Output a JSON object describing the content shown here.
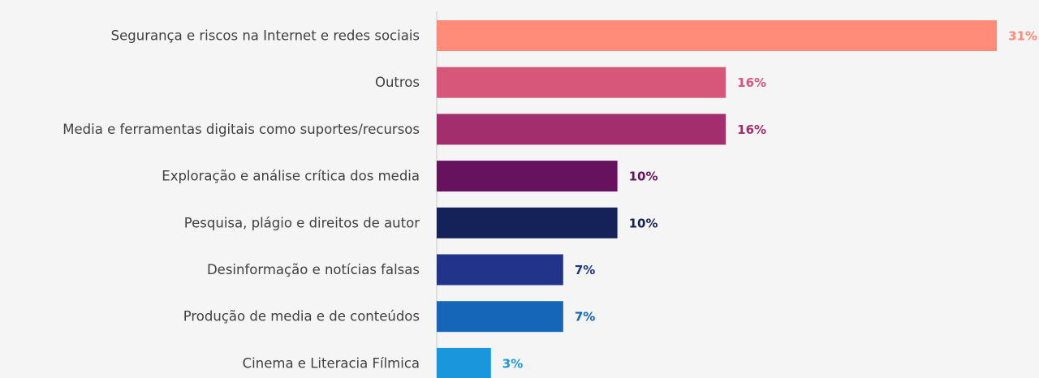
{
  "chart_data": {
    "type": "barh",
    "categories": [
      "Segurança e riscos na Internet e redes sociais",
      "Outros",
      "Media e ferramentas digitais como suportes/recursos",
      "Exploração e análise crítica dos media",
      "Pesquisa, plágio e direitos de autor",
      "Desinformação e notícias falsas",
      "Produção de media e de conteúdos",
      "Cinema e Literacia Fílmica"
    ],
    "values": [
      31,
      16,
      16,
      10,
      10,
      7,
      7,
      3
    ],
    "value_labels": [
      "31%",
      "16%",
      "16%",
      "10%",
      "10%",
      "7%",
      "7%",
      "3%"
    ],
    "colors": [
      "#ff8b78",
      "#d6577a",
      "#a32e6e",
      "#67125f",
      "#15225a",
      "#213489",
      "#1566b8",
      "#1a97dc"
    ]
  }
}
